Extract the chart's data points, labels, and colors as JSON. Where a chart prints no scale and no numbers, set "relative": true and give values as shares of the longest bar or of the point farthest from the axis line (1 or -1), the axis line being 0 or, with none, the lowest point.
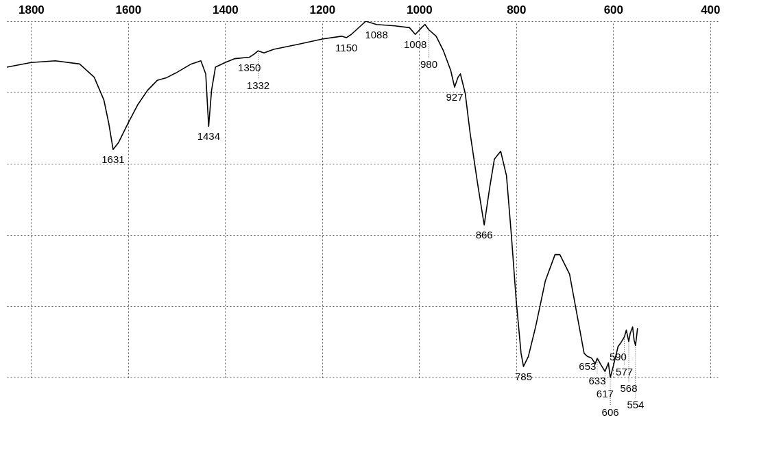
{
  "chart_data": {
    "type": "line",
    "relative": true,
    "color": "#000000",
    "xlim": [
      1850,
      380
    ],
    "xticks": [
      1800,
      1600,
      1400,
      1200,
      1000,
      800,
      600,
      400
    ],
    "grid": true,
    "line_style": "solid",
    "x": [
      1850,
      1800,
      1750,
      1700,
      1670,
      1650,
      1640,
      1631,
      1620,
      1600,
      1580,
      1560,
      1540,
      1520,
      1500,
      1470,
      1450,
      1440,
      1434,
      1428,
      1420,
      1400,
      1380,
      1350,
      1340,
      1332,
      1320,
      1300,
      1250,
      1200,
      1160,
      1150,
      1140,
      1110,
      1088,
      1050,
      1020,
      1008,
      995,
      988,
      980,
      965,
      950,
      935,
      927,
      920,
      915,
      905,
      895,
      880,
      866,
      855,
      845,
      832,
      820,
      810,
      800,
      790,
      785,
      775,
      760,
      740,
      720,
      710,
      690,
      670,
      660,
      653,
      645,
      637,
      633,
      625,
      617,
      610,
      606,
      600,
      590,
      585,
      577,
      573,
      568,
      565,
      560,
      557,
      554,
      550
    ],
    "values": [
      0.871,
      0.884,
      0.889,
      0.88,
      0.843,
      0.779,
      0.714,
      0.64,
      0.659,
      0.714,
      0.766,
      0.806,
      0.834,
      0.842,
      0.856,
      0.88,
      0.889,
      0.852,
      0.705,
      0.806,
      0.871,
      0.884,
      0.895,
      0.899,
      0.908,
      0.917,
      0.911,
      0.921,
      0.935,
      0.95,
      0.958,
      0.954,
      0.963,
      1,
      0.991,
      0.987,
      0.982,
      0.963,
      0.982,
      0.991,
      0.976,
      0.958,
      0.917,
      0.862,
      0.815,
      0.843,
      0.852,
      0.797,
      0.686,
      0.548,
      0.428,
      0.53,
      0.613,
      0.635,
      0.566,
      0.4,
      0.216,
      0.068,
      0.031,
      0.059,
      0.142,
      0.271,
      0.345,
      0.345,
      0.29,
      0.142,
      0.068,
      0.059,
      0.055,
      0.039,
      0.054,
      0.035,
      0.017,
      0.041,
      0,
      0.031,
      0.087,
      0.096,
      0.114,
      0.133,
      0.101,
      0.124,
      0.142,
      0.105,
      0.09,
      0.137
    ],
    "annotations": [
      {
        "text": "1631",
        "x": 1631,
        "y": 0.64
      },
      {
        "text": "1434",
        "x": 1434,
        "y": 0.705
      },
      {
        "text": "1350",
        "x": 1350,
        "y": 0.899
      },
      {
        "text": "1332",
        "x": 1332,
        "y": 0.917
      },
      {
        "text": "1150",
        "x": 1150,
        "y": 0.954
      },
      {
        "text": "1088",
        "x": 1088,
        "y": 0.991
      },
      {
        "text": "1008",
        "x": 1008,
        "y": 0.963
      },
      {
        "text": "980",
        "x": 980,
        "y": 0.976
      },
      {
        "text": "927",
        "x": 927,
        "y": 0.815
      },
      {
        "text": "866",
        "x": 866,
        "y": 0.428
      },
      {
        "text": "785",
        "x": 785,
        "y": 0.031
      },
      {
        "text": "653",
        "x": 653,
        "y": 0.059
      },
      {
        "text": "633",
        "x": 633,
        "y": 0.054
      },
      {
        "text": "617",
        "x": 617,
        "y": 0.017
      },
      {
        "text": "606",
        "x": 606,
        "y": 0
      },
      {
        "text": "590",
        "x": 590,
        "y": 0.087
      },
      {
        "text": "577",
        "x": 577,
        "y": 0.114
      },
      {
        "text": "568",
        "x": 568,
        "y": 0.101
      },
      {
        "text": "554",
        "x": 554,
        "y": 0.09
      }
    ]
  }
}
